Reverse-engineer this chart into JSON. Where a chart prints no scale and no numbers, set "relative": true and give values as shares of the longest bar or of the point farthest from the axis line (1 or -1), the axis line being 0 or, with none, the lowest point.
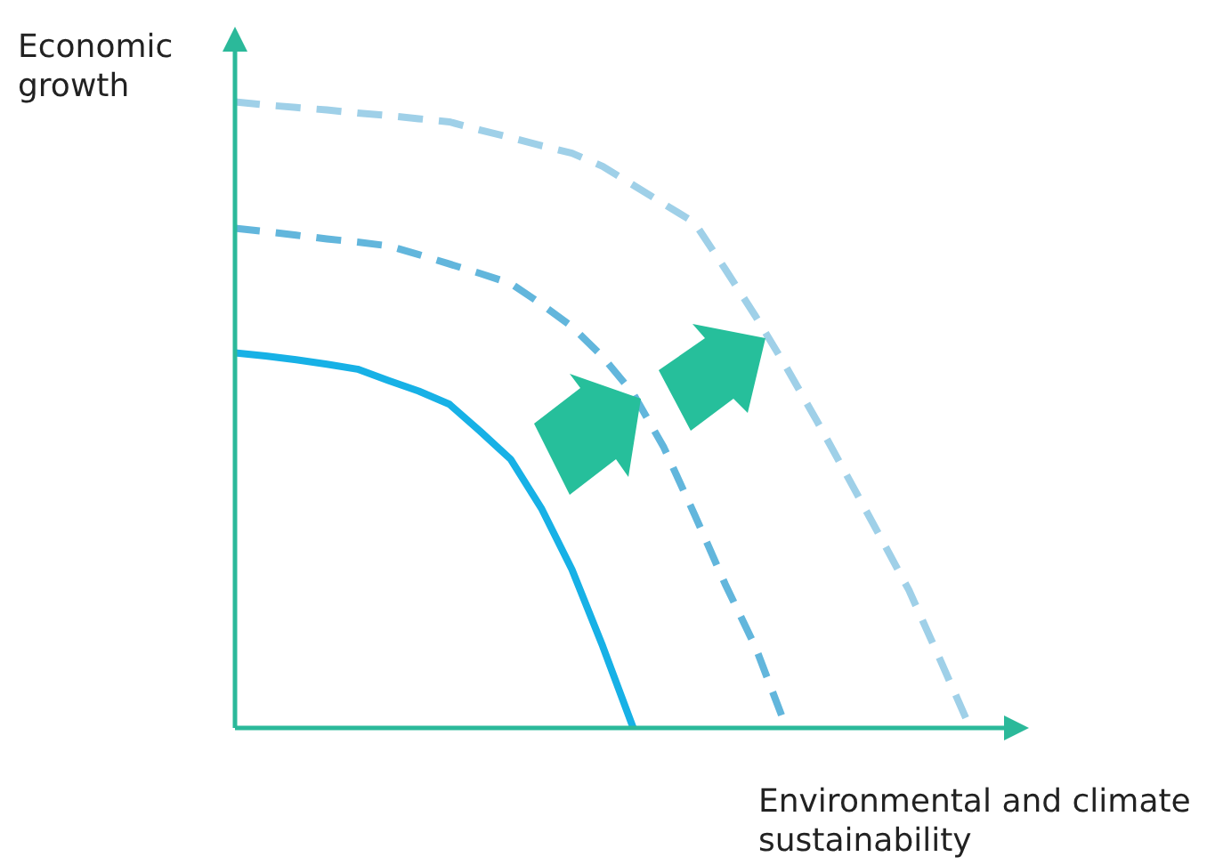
{
  "chart_data": {
    "type": "line",
    "relative": true,
    "xlabel": "Environmental and climate sustainability",
    "ylabel": "Economic growth",
    "legend": false,
    "marker": "none",
    "categories": [
      null,
      null,
      null,
      null,
      null,
      null,
      null,
      null,
      null,
      null,
      null,
      null,
      null,
      null,
      null,
      null,
      null,
      null,
      null,
      null,
      null,
      null,
      null,
      null,
      null
    ],
    "series": [
      {
        "color": "#17b1e6",
        "line_style": "solid",
        "values": [
          0.599,
          0.594,
          0.588,
          0.581,
          0.573,
          0.555,
          0.538,
          0.517,
          0.474,
          0.429,
          0.351,
          0.253,
          0.131,
          0,
          null,
          null,
          null,
          null,
          null,
          null,
          null,
          null,
          null,
          null,
          null
        ]
      },
      {
        "color": "#62b6dc",
        "line_style": "dashed",
        "values": [
          0.798,
          0.793,
          0.787,
          0.781,
          0.776,
          0.77,
          0.756,
          0.741,
          0.726,
          0.71,
          0.677,
          0.641,
          0.593,
          0.534,
          0.448,
          0.341,
          0.23,
          0.128,
          0,
          null,
          null,
          null,
          null,
          null,
          null
        ]
      },
      {
        "color": "#9fd0e8",
        "line_style": "dashed",
        "values": [
          1,
          0.995,
          0.991,
          0.987,
          0.982,
          0.978,
          0.973,
          0.968,
          0.955,
          0.943,
          0.93,
          0.918,
          0.897,
          0.867,
          0.837,
          0.807,
          0.733,
          0.657,
          0.576,
          0.49,
          0.401,
          0.311,
          0.22,
          0.111,
          0
        ]
      }
    ]
  }
}
